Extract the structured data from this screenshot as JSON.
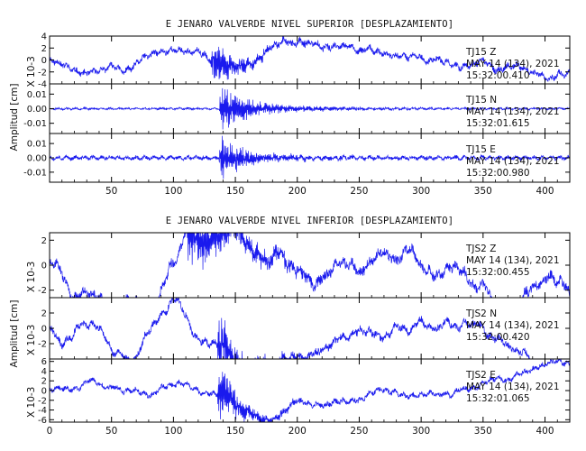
{
  "chart_data": [
    {
      "type": "line",
      "title": "E JENARO VALVERDE NIVEL SUPERIOR [DESPLAZAMIENTO]",
      "xlabel": "",
      "xlim": [
        0,
        420
      ],
      "xticks": [
        50,
        100,
        150,
        200,
        250,
        300,
        350,
        400
      ],
      "panels": [
        {
          "station": "TJ15",
          "component": "Z",
          "date": "MAY 14 (134), 2021",
          "time": "15:32:00.410",
          "ylim": [
            -4,
            4
          ],
          "yticks": [
            -4,
            -2,
            0,
            2,
            4
          ],
          "ytick_labels": [
            "-4",
            "-2",
            "0",
            "2",
            "4"
          ],
          "scale_label": "X 10-3",
          "trace": {
            "noise": 0.45,
            "event_start": 130,
            "peak_amp": 3.8,
            "decay": 14,
            "coda": 0.9,
            "coda_decay": 60,
            "lowfreq": 0.35,
            "seed": 11
          }
        },
        {
          "station": "TJ15",
          "component": "N",
          "date": "MAY 14 (134), 2021",
          "time": "15:32:01.615",
          "ylim": [
            -0.017,
            0.017
          ],
          "yticks": [
            -0.01,
            0,
            0.01
          ],
          "ytick_labels": [
            "-0.01",
            "0.00",
            "0.01"
          ],
          "scale_label": "",
          "trace": {
            "noise": 0.0006,
            "event_start": 137,
            "peak_amp": 0.0145,
            "decay": 18,
            "coda": 0.0045,
            "coda_decay": 70,
            "lowfreq": 0.0,
            "seed": 23
          }
        },
        {
          "station": "TJ15",
          "component": "E",
          "date": "MAY 14 (134), 2021",
          "time": "15:32:00.980",
          "ylim": [
            -0.017,
            0.017
          ],
          "yticks": [
            -0.01,
            0,
            0.01
          ],
          "ytick_labels": [
            "-0.01",
            "0.00",
            "0.01"
          ],
          "scale_label": "",
          "trace": {
            "noise": 0.0012,
            "event_start": 137,
            "peak_amp": 0.015,
            "decay": 16,
            "coda": 0.004,
            "coda_decay": 65,
            "lowfreq": 0.0,
            "seed": 37
          }
        }
      ],
      "ylabel": "Amplitud [cm]"
    },
    {
      "type": "line",
      "title": "E JENARO VALVERDE NIVEL INFERIOR [DESPLAZAMIENTO]",
      "xlabel": "",
      "xlim": [
        0,
        420
      ],
      "xticks": [
        0,
        50,
        100,
        150,
        200,
        250,
        300,
        350,
        400
      ],
      "panels": [
        {
          "station": "TJS2",
          "component": "Z",
          "date": "MAY 14 (134), 2021",
          "time": "15:32:00.455",
          "ylim": [
            -2.6,
            2.6
          ],
          "yticks": [
            -2,
            0,
            2
          ],
          "ytick_labels": [
            "-2",
            "0",
            "2"
          ],
          "scale_label": "X 10-3",
          "trace": {
            "noise": 0.35,
            "event_start": 110,
            "peak_amp": 2.5,
            "decay": 30,
            "coda": 0.7,
            "coda_decay": 80,
            "lowfreq": 0.45,
            "seed": 51
          }
        },
        {
          "station": "TJS2",
          "component": "N",
          "date": "MAY 14 (134), 2021",
          "time": "15:32:00.420",
          "ylim": [
            -4,
            4
          ],
          "yticks": [
            -2,
            0,
            2
          ],
          "ytick_labels": [
            "-2",
            "0",
            "2"
          ],
          "scale_label": "X 10-3",
          "trace": {
            "noise": 0.4,
            "event_start": 135,
            "peak_amp": 3.6,
            "decay": 18,
            "coda": 0.8,
            "coda_decay": 70,
            "lowfreq": 0.5,
            "seed": 67
          }
        },
        {
          "station": "TJS2",
          "component": "E",
          "date": "MAY 14 (134), 2021",
          "time": "15:32:01.065",
          "ylim": [
            -6.5,
            6.5
          ],
          "yticks": [
            -6,
            -4,
            -2,
            0,
            2,
            4,
            6
          ],
          "ytick_labels": [
            "-6",
            "-4",
            "-2",
            "0",
            "2",
            "4",
            "6"
          ],
          "scale_label": "X 10-3",
          "trace": {
            "noise": 0.45,
            "event_start": 135,
            "peak_amp": 6.0,
            "decay": 14,
            "coda": 1.0,
            "coda_decay": 60,
            "lowfreq": 0.45,
            "seed": 89
          }
        }
      ],
      "ylabel": "Amplitud [cm]"
    }
  ],
  "colors": {
    "trace": "#1a1aee",
    "frame": "#000000",
    "text": "#111111"
  }
}
